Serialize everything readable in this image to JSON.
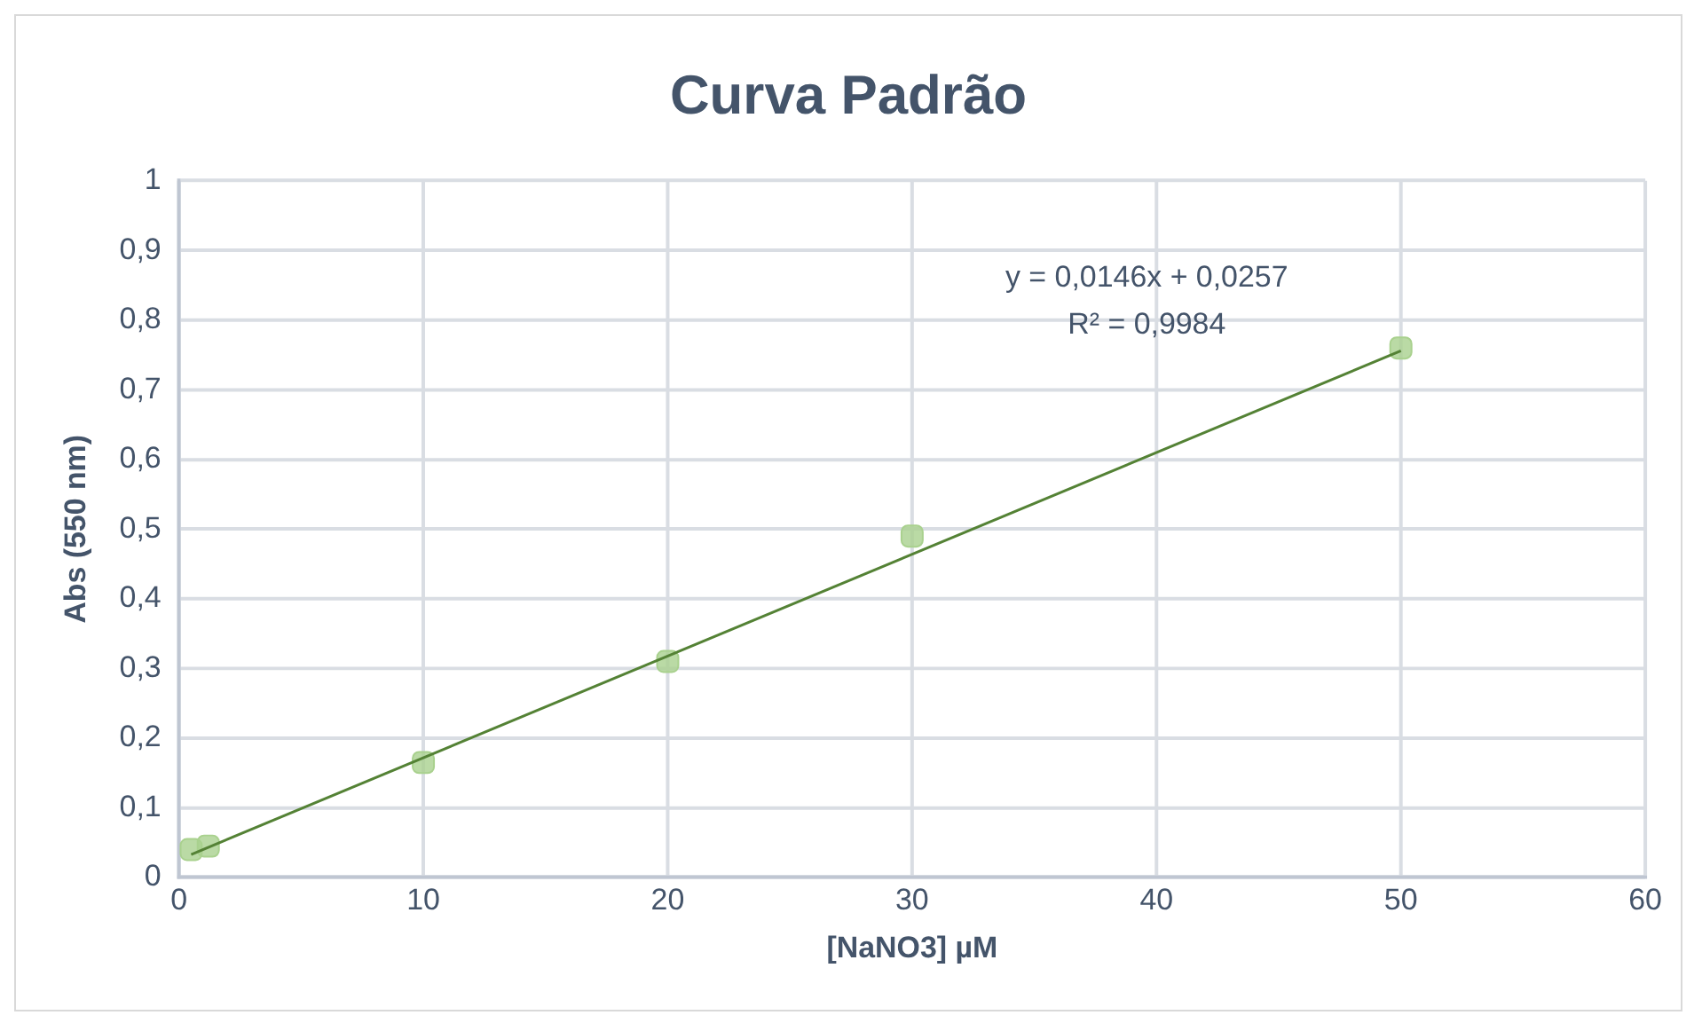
{
  "chart_data": {
    "type": "scatter",
    "title": "Curva Padrão",
    "xlabel": "[NaNO3] µM",
    "ylabel": "Abs (550 nm)",
    "xlim": [
      0,
      60
    ],
    "xticks": [
      0,
      10,
      20,
      30,
      40,
      50,
      60
    ],
    "ylim": [
      0,
      1
    ],
    "yticks": [
      {
        "value": 0,
        "label": "0"
      },
      {
        "value": 0.1,
        "label": "0,1"
      },
      {
        "value": 0.2,
        "label": "0,2"
      },
      {
        "value": 0.3,
        "label": "0,3"
      },
      {
        "value": 0.4,
        "label": "0,4"
      },
      {
        "value": 0.5,
        "label": "0,5"
      },
      {
        "value": 0.6,
        "label": "0,6"
      },
      {
        "value": 0.7,
        "label": "0,7"
      },
      {
        "value": 0.8,
        "label": "0,8"
      },
      {
        "value": 0.9,
        "label": "0,9"
      },
      {
        "value": 1,
        "label": "1"
      }
    ],
    "grid": true,
    "legend": false,
    "series": [
      {
        "marker": "square",
        "color": "#a9d18e",
        "x": [
          0.5,
          1.2,
          10,
          20,
          30,
          50
        ],
        "values": [
          0.04,
          0.045,
          0.165,
          0.31,
          0.49,
          0.76
        ]
      },
      {
        "type": "line",
        "marker": "none",
        "color": "#548235",
        "x": [
          0.5,
          50
        ],
        "values": [
          0.033,
          0.756
        ]
      }
    ],
    "annotations": [
      "y = 0,0146x + 0,0257",
      "R² = 0,9984"
    ]
  }
}
